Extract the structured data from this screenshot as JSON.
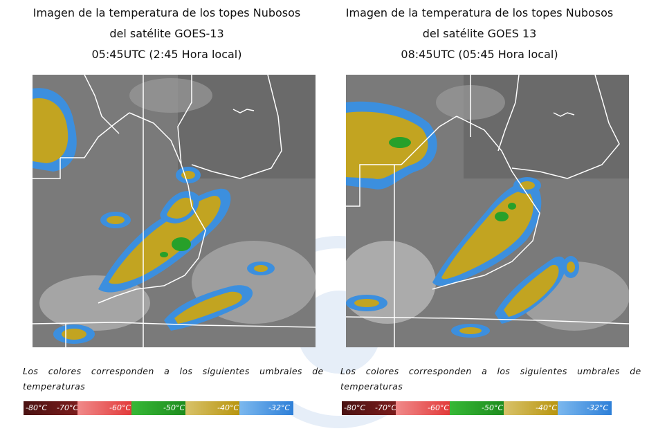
{
  "panels": [
    {
      "title_lines": [
        "Imagen de la temperatura de los topes Nubosos",
        "del satélite GOES-13",
        "05:45UTC (2:45 Hora local)"
      ],
      "caption": "Los colores corresponden a los siguientes umbrales de temperaturas",
      "scale_labels": [
        "-80°C",
        "-70°C",
        "-60°C",
        "-50°C",
        "-40°C",
        "-32°C"
      ]
    },
    {
      "title_lines": [
        "Imagen de la temperatura de los topes Nubosos",
        "del satélite GOES 13",
        "08:45UTC (05:45 Hora local)"
      ],
      "caption": "Los colores corresponden a los siguientes umbrales de temperaturas",
      "scale_labels": [
        "-80°C",
        "-70°C",
        "-60°C",
        "-50°C",
        "-40°C",
        "-32°C"
      ]
    }
  ],
  "scale_colors": [
    "#5a1818",
    "#9e2a2a",
    "#e84a4a",
    "#2faa2f",
    "#c7a415",
    "#3b8fe0"
  ],
  "map_colors": {
    "background": "#7c7c7c",
    "cloud_light": "#bdbdbd",
    "cold_blue": "#3c8fde",
    "yellow": "#c2a421",
    "green": "#27a02a",
    "border": "#ffffff"
  }
}
